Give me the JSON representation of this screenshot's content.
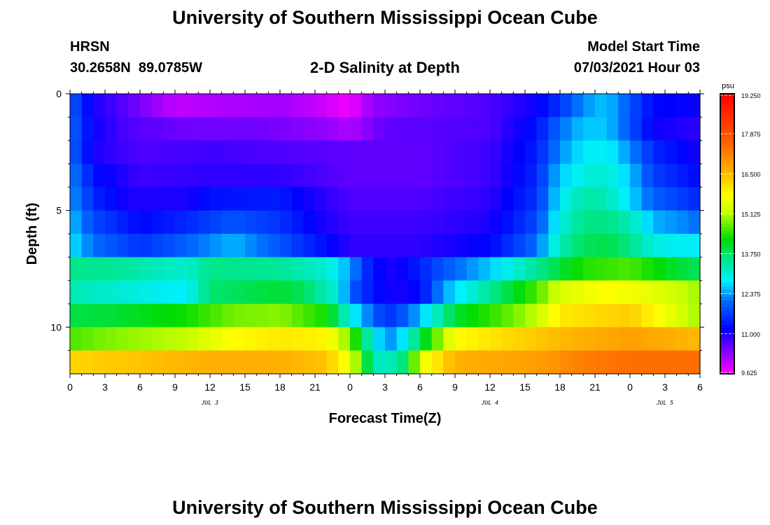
{
  "page": {
    "top_title": "University of Southern Mississippi Ocean Cube",
    "bottom_title": "University of Southern Mississippi Ocean Cube",
    "station": "HRSN",
    "location": "30.2658N  89.0785W",
    "model_start_label": "Model Start Time",
    "model_start_value": "07/03/2021 Hour 03"
  },
  "chart_data": {
    "type": "heatmap",
    "title": "2-D Salinity at Depth",
    "xlabel": "Forecast Time(Z)",
    "ylabel": "Depth (ft)",
    "x_range": [
      0,
      54
    ],
    "x_ticks": [
      0,
      3,
      6,
      9,
      12,
      15,
      18,
      21,
      24,
      27,
      30,
      33,
      36,
      39,
      42,
      45,
      48,
      51,
      54
    ],
    "x_tick_labels": [
      "0",
      "3",
      "6",
      "9",
      "12",
      "15",
      "18",
      "21",
      "0",
      "3",
      "6",
      "9",
      "12",
      "15",
      "18",
      "21",
      "0",
      "3",
      "6"
    ],
    "date_labels": [
      {
        "x": 12,
        "text": "JUL 3"
      },
      {
        "x": 36,
        "text": "JUL 4"
      },
      {
        "x": 51,
        "text": "JUL 5"
      }
    ],
    "y_range": [
      0,
      12
    ],
    "y_ticks": [
      0,
      5,
      10
    ],
    "y_tick_labels": [
      "0",
      "5",
      "10"
    ],
    "colorbar": {
      "unit": "psu",
      "min": 9.625,
      "max": 19.25,
      "tick_labels": [
        "19.250",
        "17.875",
        "16.500",
        "15.125",
        "13.750",
        "12.375",
        "11.000",
        "9.625"
      ]
    },
    "layers_note": "Salinity (psu) per depth layer, sampled at forecast hours (linearly interpolated between keypoints).",
    "layers": [
      {
        "depth": 0.5,
        "keys": [
          [
            0,
            12.0
          ],
          [
            2,
            11.0
          ],
          [
            5,
            10.6
          ],
          [
            9,
            10.0
          ],
          [
            12,
            10.1
          ],
          [
            18,
            10.2
          ],
          [
            21,
            10.0
          ],
          [
            24,
            9.7
          ],
          [
            26,
            10.3
          ],
          [
            30,
            10.5
          ],
          [
            36,
            10.7
          ],
          [
            40,
            11.1
          ],
          [
            42,
            11.6
          ],
          [
            44,
            12.3
          ],
          [
            46,
            12.6
          ],
          [
            48,
            11.9
          ],
          [
            50,
            11.2
          ],
          [
            54,
            11.1
          ]
        ]
      },
      {
        "depth": 1.5,
        "keys": [
          [
            0,
            12.1
          ],
          [
            2,
            11.1
          ],
          [
            5,
            10.7
          ],
          [
            10,
            10.5
          ],
          [
            16,
            10.5
          ],
          [
            22,
            10.3
          ],
          [
            24,
            10.1
          ],
          [
            27,
            10.6
          ],
          [
            36,
            10.7
          ],
          [
            40,
            11.3
          ],
          [
            42,
            12.1
          ],
          [
            44,
            12.6
          ],
          [
            46,
            12.6
          ],
          [
            48,
            11.9
          ],
          [
            50,
            11.1
          ],
          [
            54,
            10.9
          ]
        ]
      },
      {
        "depth": 2.5,
        "keys": [
          [
            0,
            12.1
          ],
          [
            2,
            11.0
          ],
          [
            6,
            10.7
          ],
          [
            12,
            10.8
          ],
          [
            18,
            10.7
          ],
          [
            24,
            10.6
          ],
          [
            30,
            10.6
          ],
          [
            36,
            10.8
          ],
          [
            40,
            11.4
          ],
          [
            42,
            12.3
          ],
          [
            44,
            12.8
          ],
          [
            46,
            12.9
          ],
          [
            48,
            12.3
          ],
          [
            50,
            11.5
          ],
          [
            54,
            11.0
          ]
        ]
      },
      {
        "depth": 3.5,
        "keys": [
          [
            0,
            12.3
          ],
          [
            2,
            11.3
          ],
          [
            6,
            10.8
          ],
          [
            12,
            10.9
          ],
          [
            18,
            10.9
          ],
          [
            24,
            10.6
          ],
          [
            30,
            10.6
          ],
          [
            36,
            10.8
          ],
          [
            40,
            11.5
          ],
          [
            42,
            12.6
          ],
          [
            44,
            13.0
          ],
          [
            46,
            13.1
          ],
          [
            48,
            12.6
          ],
          [
            50,
            11.7
          ],
          [
            54,
            11.2
          ]
        ]
      },
      {
        "depth": 4.5,
        "keys": [
          [
            0,
            12.4
          ],
          [
            2,
            11.5
          ],
          [
            5,
            11.0
          ],
          [
            10,
            11.0
          ],
          [
            12,
            11.3
          ],
          [
            18,
            11.4
          ],
          [
            20,
            11.1
          ],
          [
            24,
            10.7
          ],
          [
            30,
            10.7
          ],
          [
            36,
            10.9
          ],
          [
            40,
            11.6
          ],
          [
            42,
            12.8
          ],
          [
            44,
            13.4
          ],
          [
            46,
            13.3
          ],
          [
            48,
            12.7
          ],
          [
            50,
            12.0
          ],
          [
            54,
            11.5
          ]
        ]
      },
      {
        "depth": 5.5,
        "keys": [
          [
            0,
            12.6
          ],
          [
            2,
            11.8
          ],
          [
            6,
            11.2
          ],
          [
            10,
            11.5
          ],
          [
            14,
            11.9
          ],
          [
            18,
            11.6
          ],
          [
            21,
            11.1
          ],
          [
            24,
            10.8
          ],
          [
            30,
            10.8
          ],
          [
            36,
            11.0
          ],
          [
            40,
            11.8
          ],
          [
            42,
            13.0
          ],
          [
            44,
            13.6
          ],
          [
            46,
            13.6
          ],
          [
            48,
            13.3
          ],
          [
            50,
            12.5
          ],
          [
            54,
            12.1
          ]
        ]
      },
      {
        "depth": 6.5,
        "keys": [
          [
            0,
            12.8
          ],
          [
            2,
            12.1
          ],
          [
            6,
            11.6
          ],
          [
            10,
            12.0
          ],
          [
            14,
            12.5
          ],
          [
            18,
            11.9
          ],
          [
            21,
            11.4
          ],
          [
            24,
            10.9
          ],
          [
            30,
            10.9
          ],
          [
            36,
            11.2
          ],
          [
            40,
            12.1
          ],
          [
            42,
            13.3
          ],
          [
            44,
            13.8
          ],
          [
            46,
            13.9
          ],
          [
            48,
            13.6
          ],
          [
            50,
            13.0
          ],
          [
            54,
            12.8
          ]
        ]
      },
      {
        "depth": 7.5,
        "keys": [
          [
            0,
            13.6
          ],
          [
            4,
            13.5
          ],
          [
            10,
            13.1
          ],
          [
            12,
            13.6
          ],
          [
            18,
            13.5
          ],
          [
            22,
            13.1
          ],
          [
            24,
            12.4
          ],
          [
            26,
            11.2
          ],
          [
            28,
            11.0
          ],
          [
            32,
            11.9
          ],
          [
            36,
            12.6
          ],
          [
            40,
            13.5
          ],
          [
            44,
            14.4
          ],
          [
            48,
            14.6
          ],
          [
            52,
            14.0
          ],
          [
            54,
            13.8
          ]
        ]
      },
      {
        "depth": 8.5,
        "keys": [
          [
            0,
            13.3
          ],
          [
            4,
            13.1
          ],
          [
            10,
            12.8
          ],
          [
            12,
            13.7
          ],
          [
            18,
            14.0
          ],
          [
            20,
            13.8
          ],
          [
            23,
            13.0
          ],
          [
            24,
            12.0
          ],
          [
            26,
            11.3
          ],
          [
            28,
            11.0
          ],
          [
            30,
            11.2
          ],
          [
            32,
            12.4
          ],
          [
            36,
            13.5
          ],
          [
            40,
            14.6
          ],
          [
            42,
            15.4
          ],
          [
            46,
            15.8
          ],
          [
            50,
            15.5
          ],
          [
            54,
            15.0
          ]
        ]
      },
      {
        "depth": 9.5,
        "keys": [
          [
            0,
            13.9
          ],
          [
            4,
            14.0
          ],
          [
            10,
            14.3
          ],
          [
            14,
            14.8
          ],
          [
            18,
            14.9
          ],
          [
            22,
            14.3
          ],
          [
            24,
            13.0
          ],
          [
            26,
            12.0
          ],
          [
            27,
            11.6
          ],
          [
            28,
            11.7
          ],
          [
            30,
            12.5
          ],
          [
            33,
            14.0
          ],
          [
            37,
            14.6
          ],
          [
            40,
            15.2
          ],
          [
            42,
            16.0
          ],
          [
            48,
            16.3
          ],
          [
            54,
            15.0
          ]
        ]
      },
      {
        "depth": 10.5,
        "keys": [
          [
            0,
            14.6
          ],
          [
            4,
            14.9
          ],
          [
            10,
            15.2
          ],
          [
            14,
            15.8
          ],
          [
            18,
            16.0
          ],
          [
            22,
            15.9
          ],
          [
            24,
            14.8
          ],
          [
            26,
            13.0
          ],
          [
            27,
            12.3
          ],
          [
            28,
            12.4
          ],
          [
            30,
            13.8
          ],
          [
            33,
            15.8
          ],
          [
            38,
            16.2
          ],
          [
            42,
            16.5
          ],
          [
            48,
            16.8
          ],
          [
            54,
            16.5
          ]
        ]
      },
      {
        "depth": 11.5,
        "keys": [
          [
            0,
            16.2
          ],
          [
            6,
            16.4
          ],
          [
            12,
            16.6
          ],
          [
            18,
            16.6
          ],
          [
            22,
            16.4
          ],
          [
            24,
            15.5
          ],
          [
            25,
            14.6
          ],
          [
            26,
            13.2
          ],
          [
            28,
            13.3
          ],
          [
            29,
            14.0
          ],
          [
            30,
            15.5
          ],
          [
            33,
            16.6
          ],
          [
            40,
            16.8
          ],
          [
            44,
            17.2
          ],
          [
            48,
            17.4
          ],
          [
            54,
            17.4
          ]
        ]
      }
    ]
  }
}
